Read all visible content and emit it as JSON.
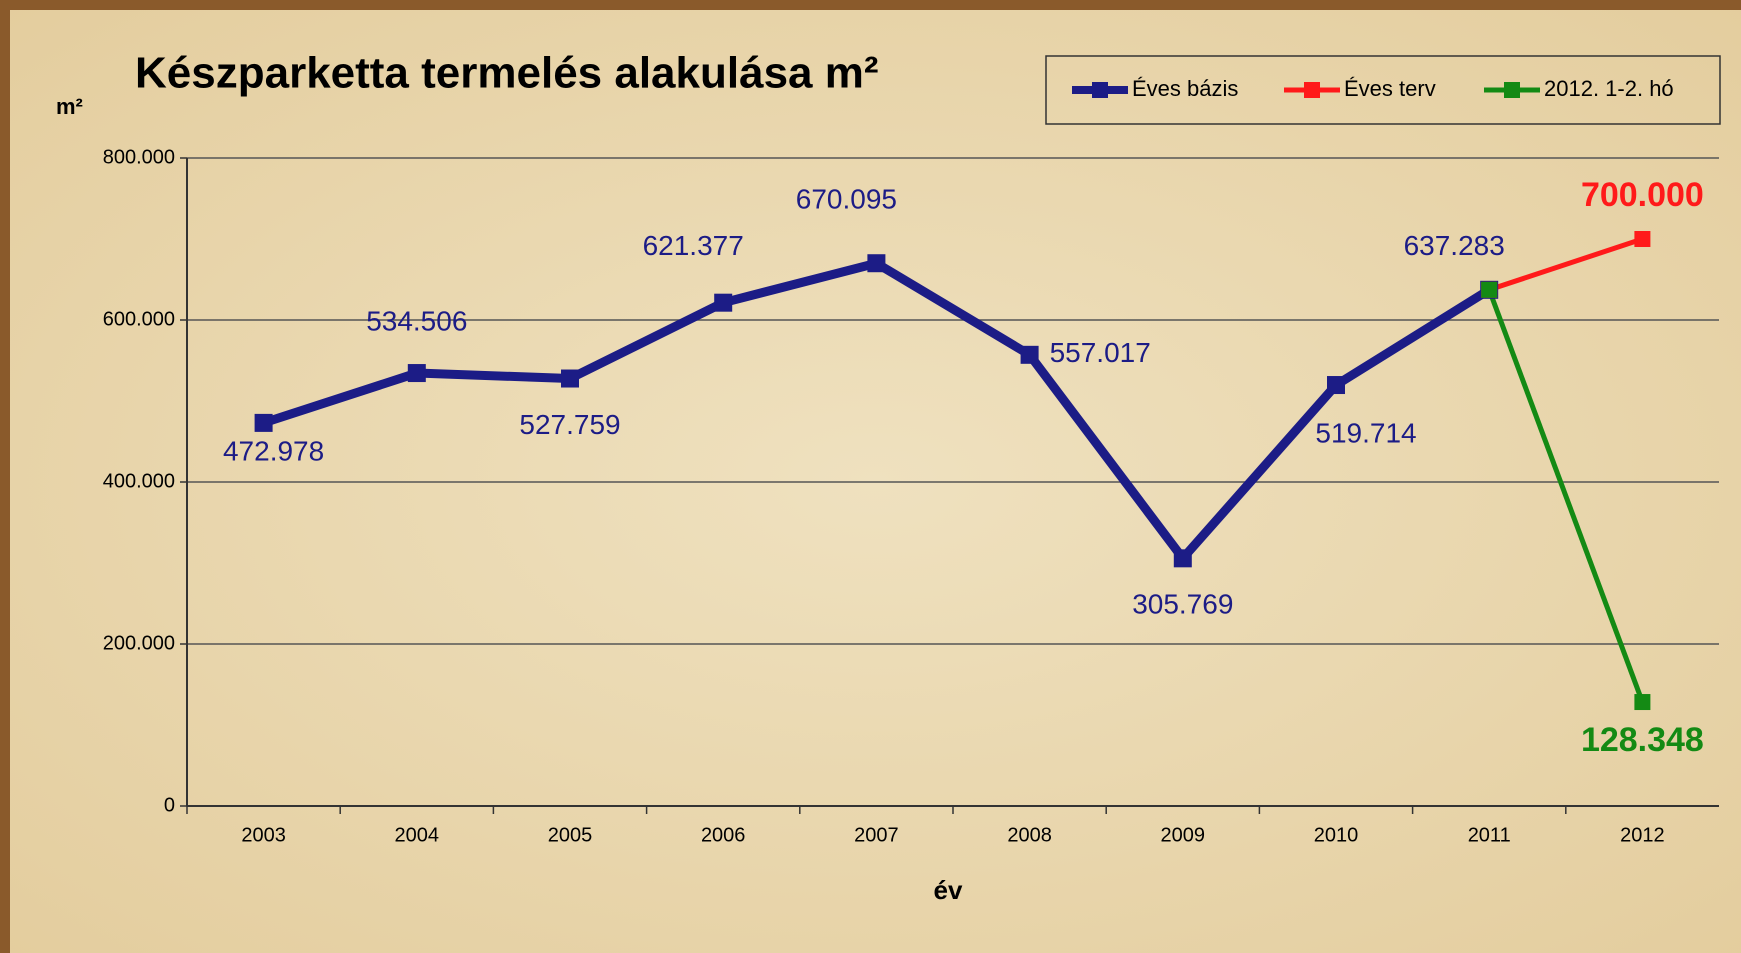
{
  "chart_data": {
    "type": "line",
    "title": "Készparketta termelés alakulása m²",
    "y_label": "m²",
    "x_label": "év",
    "categories": [
      "2003",
      "2004",
      "2005",
      "2006",
      "2007",
      "2008",
      "2009",
      "2010",
      "2011",
      "2012"
    ],
    "series": [
      {
        "name": "Éves bázis",
        "color": "#1c1c86",
        "values": [
          472978,
          534506,
          527759,
          621377,
          670095,
          557017,
          305769,
          519714,
          637283,
          null
        ],
        "value_labels": [
          "472.978",
          "534.506",
          "527.759",
          "621.377",
          "670.095",
          "557.017",
          "305.769",
          "519.714",
          "637.283",
          null
        ]
      },
      {
        "name": "Éves terv",
        "color": "#ff1a1a",
        "values": [
          null,
          null,
          null,
          null,
          null,
          null,
          null,
          null,
          637283,
          700000
        ],
        "value_labels": [
          null,
          null,
          null,
          null,
          null,
          null,
          null,
          null,
          null,
          "700.000"
        ]
      },
      {
        "name": "2012. 1-2. hó",
        "color": "#148a14",
        "values": [
          null,
          null,
          null,
          null,
          null,
          null,
          null,
          null,
          637283,
          128348
        ],
        "value_labels": [
          null,
          null,
          null,
          null,
          null,
          null,
          null,
          null,
          null,
          "128.348"
        ]
      }
    ],
    "ylim": [
      0,
      800000
    ],
    "yticks": [
      0,
      {
        "value": 200000,
        "label": "200.000"
      },
      {
        "value": 400000,
        "label": "400.000"
      },
      {
        "value": 600000,
        "label": "600.000"
      },
      {
        "value": 800000,
        "label": "800.000"
      }
    ],
    "grid": true,
    "legend": "top-right"
  }
}
